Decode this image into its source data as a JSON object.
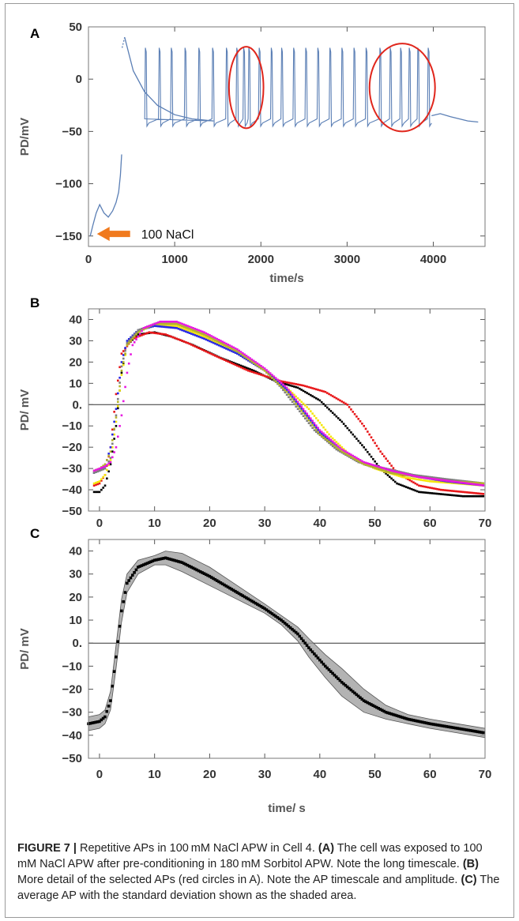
{
  "caption": {
    "figure_label": "FIGURE 7 |",
    "text_parts": [
      {
        "t": " Repetitive APs in 100 mM NaCl APW in Cell 4. ",
        "b": false
      },
      {
        "t": "(A)",
        "b": true
      },
      {
        "t": " The cell was exposed to 100 mM NaCl APW after pre-conditioning in 180 mM Sorbitol APW. Note the long timescale. ",
        "b": false
      },
      {
        "t": "(B)",
        "b": true
      },
      {
        "t": " More detail of the selected APs (red circles in A). Note the AP timescale and amplitude. ",
        "b": false
      },
      {
        "t": "(C)",
        "b": true
      },
      {
        "t": " The average AP with the standard deviation shown as the shaded area.",
        "b": false
      }
    ]
  },
  "colors": {
    "trace_a": "#5b7fb5",
    "circle": "#e0261c",
    "arrow": "#f07a1e",
    "mean": "#000000",
    "sd_band": "#9a9a9a"
  },
  "chart_data": [
    {
      "panel": "A",
      "type": "line",
      "xlabel": "time/s",
      "ylabel": "PD/mV",
      "xlim": [
        0,
        4600
      ],
      "ylim": [
        -160,
        50
      ],
      "xticks": [
        0,
        1000,
        2000,
        3000,
        4000
      ],
      "yticks": [
        50,
        0,
        -50,
        -100,
        -150
      ],
      "ytick_labels": [
        "50",
        "0",
        "−50",
        "−100",
        "−150"
      ],
      "annotation": "100 NaCl",
      "annotation_arrow_at": {
        "x": 80,
        "y": -148
      },
      "highlight_ellipses": [
        {
          "cx": 1830,
          "cy": -8,
          "rx": 200,
          "ry": 39
        },
        {
          "cx": 3640,
          "cy": -8,
          "rx": 380,
          "ry": 42
        }
      ],
      "trace": {
        "initial": [
          [
            20,
            -150
          ],
          [
            50,
            -140
          ],
          [
            90,
            -128
          ],
          [
            130,
            -120
          ],
          [
            180,
            -128
          ],
          [
            230,
            -132
          ],
          [
            280,
            -126
          ],
          [
            320,
            -118
          ],
          [
            350,
            -108
          ],
          [
            370,
            -92
          ],
          [
            385,
            -72
          ]
        ],
        "jump": [
          [
            390,
            30
          ],
          [
            420,
            40
          ]
        ],
        "decay": [
          [
            420,
            40
          ],
          [
            520,
            8
          ],
          [
            650,
            -12
          ],
          [
            800,
            -25
          ],
          [
            1000,
            -34
          ],
          [
            1200,
            -38
          ],
          [
            1450,
            -40
          ]
        ],
        "spike_times": [
          660,
          820,
          960,
          1120,
          1280,
          1440,
          1600,
          1720,
          1800,
          1860,
          1980,
          2120,
          2240,
          2380,
          2520,
          2660,
          2800,
          2940,
          3080,
          3220,
          3380,
          3500,
          3620,
          3720,
          3820,
          3940
        ],
        "spike_peak": 30,
        "spike_trough": -45,
        "baseline": -40,
        "tail": [
          [
            3980,
            -35
          ],
          [
            4080,
            -33
          ],
          [
            4200,
            -36
          ],
          [
            4400,
            -40
          ],
          [
            4520,
            -41
          ]
        ]
      }
    },
    {
      "panel": "B",
      "type": "scatter",
      "xlabel": "",
      "ylabel": "PD/ mV",
      "xlim": [
        -2,
        70
      ],
      "ylim": [
        -50,
        45
      ],
      "xticks": [
        0,
        10,
        20,
        30,
        40,
        50,
        60,
        70
      ],
      "yticks": [
        40,
        30,
        20,
        10,
        0,
        -10,
        -20,
        -30,
        -40,
        -50
      ],
      "ytick_labels": [
        "40",
        "30",
        "20",
        "10",
        "0.",
        "−10",
        "−20",
        "−30",
        "−40",
        "−50"
      ],
      "zero_line": true,
      "series": [
        {
          "color": "#000000",
          "points": [
            [
              -1,
              -41
            ],
            [
              0,
              -41
            ],
            [
              1,
              -38
            ],
            [
              2,
              -28
            ],
            [
              3,
              -10
            ],
            [
              4,
              15
            ],
            [
              5,
              28
            ],
            [
              7,
              33
            ],
            [
              10,
              34
            ],
            [
              13,
              32
            ],
            [
              17,
              28
            ],
            [
              22,
              22
            ],
            [
              28,
              16
            ],
            [
              32,
              11
            ],
            [
              36,
              8
            ],
            [
              40,
              2
            ],
            [
              44,
              -8
            ],
            [
              48,
              -20
            ],
            [
              51,
              -30
            ],
            [
              54,
              -37
            ],
            [
              58,
              -41
            ],
            [
              62,
              -42
            ],
            [
              66,
              -43
            ],
            [
              70,
              -43
            ]
          ]
        },
        {
          "color": "#e8171a",
          "points": [
            [
              -1,
              -38
            ],
            [
              0,
              -37
            ],
            [
              1,
              -33
            ],
            [
              2,
              -20
            ],
            [
              3,
              5
            ],
            [
              4,
              24
            ],
            [
              6,
              31
            ],
            [
              9,
              34
            ],
            [
              12,
              33
            ],
            [
              16,
              29
            ],
            [
              21,
              23
            ],
            [
              27,
              16
            ],
            [
              33,
              11
            ],
            [
              37,
              9
            ],
            [
              41,
              6
            ],
            [
              45,
              0
            ],
            [
              48,
              -10
            ],
            [
              51,
              -22
            ],
            [
              54,
              -32
            ],
            [
              58,
              -38
            ],
            [
              62,
              -40
            ],
            [
              66,
              -41
            ],
            [
              70,
              -42
            ]
          ]
        },
        {
          "color": "#f5e60c",
          "points": [
            [
              -1,
              -37
            ],
            [
              0,
              -36
            ],
            [
              1,
              -33
            ],
            [
              2,
              -26
            ],
            [
              3,
              -8
            ],
            [
              4,
              14
            ],
            [
              5,
              28
            ],
            [
              7,
              35
            ],
            [
              10,
              37
            ],
            [
              14,
              37
            ],
            [
              19,
              32
            ],
            [
              25,
              24
            ],
            [
              30,
              16
            ],
            [
              34,
              8
            ],
            [
              38,
              -2
            ],
            [
              42,
              -15
            ],
            [
              46,
              -25
            ],
            [
              50,
              -30
            ],
            [
              55,
              -34
            ],
            [
              60,
              -36
            ],
            [
              65,
              -37
            ],
            [
              70,
              -38
            ]
          ]
        },
        {
          "color": "#2727e6",
          "points": [
            [
              -1,
              -32
            ],
            [
              0,
              -31
            ],
            [
              1,
              -29
            ],
            [
              2,
              -20
            ],
            [
              3,
              -2
            ],
            [
              4,
              20
            ],
            [
              5,
              30
            ],
            [
              7,
              35
            ],
            [
              10,
              37
            ],
            [
              14,
              36
            ],
            [
              19,
              31
            ],
            [
              25,
              24
            ],
            [
              30,
              16
            ],
            [
              34,
              7
            ],
            [
              37,
              -3
            ],
            [
              40,
              -13
            ],
            [
              44,
              -22
            ],
            [
              48,
              -28
            ],
            [
              53,
              -32
            ],
            [
              58,
              -34
            ],
            [
              63,
              -36
            ],
            [
              70,
              -38
            ]
          ]
        },
        {
          "color": "#7f7f7f",
          "points": [
            [
              -1,
              -32
            ],
            [
              0,
              -31
            ],
            [
              1,
              -30
            ],
            [
              2,
              -25
            ],
            [
              3,
              -5
            ],
            [
              4,
              18
            ],
            [
              5,
              29
            ],
            [
              7,
              35
            ],
            [
              10,
              38
            ],
            [
              14,
              38
            ],
            [
              19,
              33
            ],
            [
              25,
              25
            ],
            [
              30,
              16
            ],
            [
              33,
              8
            ],
            [
              36,
              -2
            ],
            [
              39,
              -12
            ],
            [
              43,
              -21
            ],
            [
              47,
              -27
            ],
            [
              52,
              -30
            ],
            [
              57,
              -33
            ],
            [
              63,
              -35
            ],
            [
              70,
              -37
            ]
          ]
        },
        {
          "color": "#b5b42a",
          "points": [
            [
              -1,
              -31
            ],
            [
              0,
              -30
            ],
            [
              1,
              -28
            ],
            [
              2,
              -22
            ],
            [
              3,
              -6
            ],
            [
              4,
              16
            ],
            [
              5,
              28
            ],
            [
              7,
              34
            ],
            [
              10,
              38
            ],
            [
              14,
              38
            ],
            [
              19,
              33
            ],
            [
              25,
              25
            ],
            [
              30,
              16
            ],
            [
              34,
              6
            ],
            [
              37,
              -4
            ],
            [
              40,
              -14
            ],
            [
              44,
              -22
            ],
            [
              48,
              -28
            ],
            [
              53,
              -32
            ],
            [
              58,
              -34
            ],
            [
              64,
              -36
            ],
            [
              70,
              -37
            ]
          ]
        },
        {
          "color": "#e719e0",
          "points": [
            [
              -1,
              -31
            ],
            [
              0,
              -30
            ],
            [
              1,
              -29
            ],
            [
              2,
              -27
            ],
            [
              3,
              -20
            ],
            [
              4,
              -5
            ],
            [
              5,
              15
            ],
            [
              6,
              28
            ],
            [
              8,
              36
            ],
            [
              11,
              39
            ],
            [
              14,
              39
            ],
            [
              19,
              34
            ],
            [
              25,
              26
            ],
            [
              30,
              17
            ],
            [
              34,
              8
            ],
            [
              37,
              -2
            ],
            [
              40,
              -12
            ],
            [
              44,
              -21
            ],
            [
              48,
              -27
            ],
            [
              53,
              -31
            ],
            [
              58,
              -34
            ],
            [
              64,
              -36
            ],
            [
              70,
              -38
            ]
          ]
        }
      ]
    },
    {
      "panel": "C",
      "type": "line",
      "xlabel": "time/ s",
      "ylabel": "PD/ mV",
      "xlim": [
        -2,
        70
      ],
      "ylim": [
        -50,
        45
      ],
      "xticks": [
        0,
        10,
        20,
        30,
        40,
        50,
        60,
        70
      ],
      "yticks": [
        40,
        30,
        20,
        10,
        0,
        -10,
        -20,
        -30,
        -40,
        -50
      ],
      "ytick_labels": [
        "40",
        "30",
        "20",
        "10",
        "0.",
        "−10",
        "−20",
        "−30",
        "−40",
        "−50"
      ],
      "zero_line": true,
      "mean": [
        [
          -2,
          -35
        ],
        [
          0,
          -34
        ],
        [
          1,
          -32
        ],
        [
          2,
          -25
        ],
        [
          3,
          -6
        ],
        [
          4,
          14
        ],
        [
          5,
          26
        ],
        [
          7,
          33
        ],
        [
          10,
          36
        ],
        [
          12,
          37
        ],
        [
          15,
          35
        ],
        [
          20,
          29
        ],
        [
          25,
          22
        ],
        [
          30,
          15
        ],
        [
          33,
          10
        ],
        [
          36,
          4
        ],
        [
          38,
          -2
        ],
        [
          41,
          -10
        ],
        [
          44,
          -17
        ],
        [
          48,
          -25
        ],
        [
          52,
          -30
        ],
        [
          56,
          -33
        ],
        [
          60,
          -35
        ],
        [
          65,
          -37
        ],
        [
          70,
          -39
        ]
      ],
      "sd": [
        3,
        3,
        3,
        4,
        5,
        5,
        4,
        3,
        2,
        3,
        4,
        4,
        3,
        2,
        2,
        3,
        4,
        5,
        6,
        5,
        3,
        2,
        2,
        2,
        2
      ]
    }
  ]
}
